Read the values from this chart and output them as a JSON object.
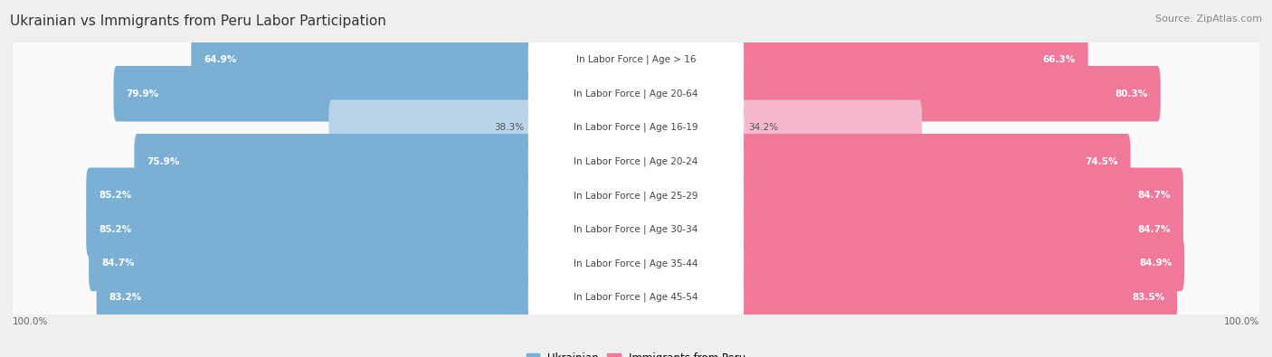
{
  "title": "Ukrainian vs Immigrants from Peru Labor Participation",
  "source": "Source: ZipAtlas.com",
  "categories": [
    "In Labor Force | Age > 16",
    "In Labor Force | Age 20-64",
    "In Labor Force | Age 16-19",
    "In Labor Force | Age 20-24",
    "In Labor Force | Age 25-29",
    "In Labor Force | Age 30-34",
    "In Labor Force | Age 35-44",
    "In Labor Force | Age 45-54"
  ],
  "ukrainian_values": [
    64.9,
    79.9,
    38.3,
    75.9,
    85.2,
    85.2,
    84.7,
    83.2
  ],
  "peru_values": [
    66.3,
    80.3,
    34.2,
    74.5,
    84.7,
    84.7,
    84.9,
    83.5
  ],
  "ukrainian_color": "#7BAFD4",
  "ukrainian_color_light": "#B8D4EA",
  "peru_color": "#F07898",
  "peru_color_light": "#F5B8CC",
  "bg_color": "#EFEFEF",
  "row_bg_color": "#FAFAFA",
  "label_bg_color": "#FFFFFF",
  "max_value": 100.0,
  "legend_ukrainian": "Ukrainian",
  "legend_peru": "Immigrants from Peru",
  "title_fontsize": 11,
  "source_fontsize": 8,
  "label_fontsize": 7.5,
  "val_fontsize": 7.5
}
